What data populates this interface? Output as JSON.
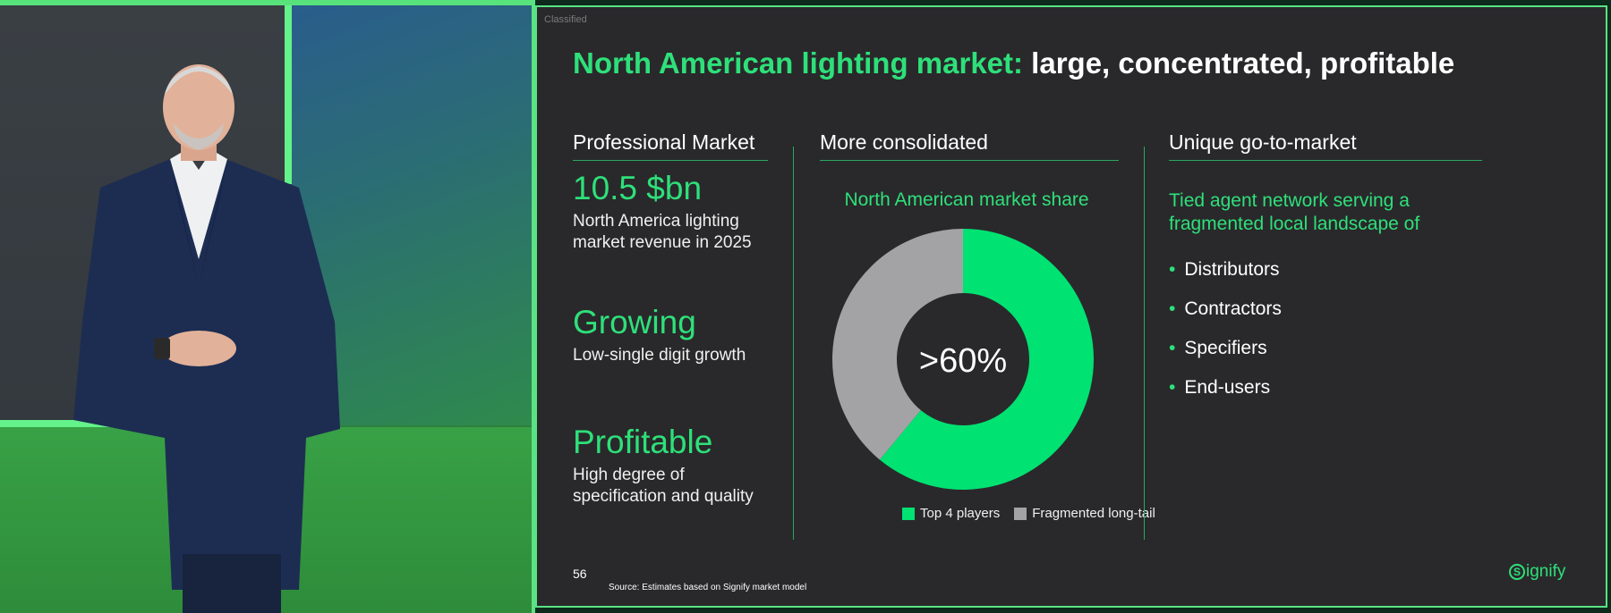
{
  "slide": {
    "classification": "Classified",
    "title_accent": "North American lighting market:",
    "title_rest": " large, concentrated, profitable",
    "columns": {
      "professional": {
        "heading": "Professional Market",
        "stats": [
          {
            "big": "10.5 $bn",
            "line1": "North America lighting",
            "line2": "market revenue in 2025"
          },
          {
            "big": "Growing",
            "line1": "Low-single digit growth",
            "line2": ""
          },
          {
            "big": "Profitable",
            "line1": "High degree of",
            "line2": "specification and quality"
          }
        ]
      },
      "consolidated": {
        "heading": "More consolidated",
        "chart_title": "North American market share",
        "center_label": ">60%"
      },
      "go_to_market": {
        "heading": "Unique go-to-market",
        "intro_line1": "Tied agent network serving a",
        "intro_line2": "fragmented local landscape of",
        "bullets": [
          "Distributors",
          "Contractors",
          "Specifiers",
          "End-users"
        ]
      }
    },
    "page_number": "56",
    "source": "Source: Estimates based on Signify market model",
    "logo_text": "ignify",
    "logo_mark": "S"
  },
  "chart_data": {
    "type": "pie",
    "donut": true,
    "categories": [
      "Top 4 players",
      "Fragmented long-tail"
    ],
    "values": [
      61,
      39
    ],
    "colors": [
      "#00e272",
      "#a3a3a6"
    ],
    "center_text": ">60%",
    "title": "North American market share",
    "legend": "bottom"
  },
  "colors": {
    "accent": "#2ee07a",
    "slide_bg": "#29292b",
    "frame": "#5be284"
  }
}
